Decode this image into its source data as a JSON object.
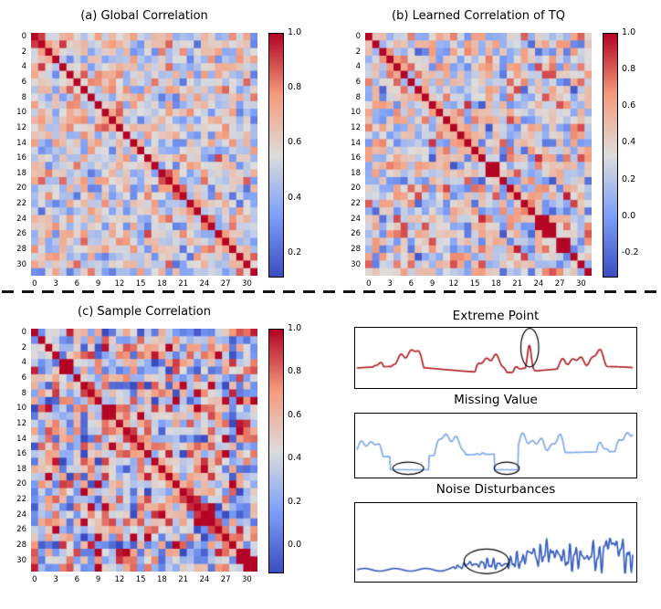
{
  "figure": {
    "background": "#ffffff",
    "separator": "dashed-black-line"
  },
  "colormap": {
    "name": "coolwarm",
    "stops": [
      [
        0.0,
        "#3B4CC0"
      ],
      [
        0.25,
        "#7C9FF9"
      ],
      [
        0.5,
        "#DDDDDD"
      ],
      [
        0.75,
        "#F59C7D"
      ],
      [
        1.0,
        "#B40426"
      ]
    ]
  },
  "chart_data": [
    {
      "id": "global_correlation",
      "type": "heatmap",
      "title": "(a) Global Correlation",
      "size": 32,
      "diagonal_value": 1.0,
      "vmin": 0.12,
      "vmax": 1.0,
      "x_ticks": [
        "0",
        "3",
        "6",
        "9",
        "12",
        "15",
        "18",
        "21",
        "24",
        "27",
        "30"
      ],
      "y_ticks": [
        "0",
        "2",
        "4",
        "6",
        "8",
        "10",
        "12",
        "14",
        "16",
        "18",
        "20",
        "22",
        "24",
        "26",
        "28",
        "30"
      ],
      "colorbar_ticks": [
        "1.0",
        "0.8",
        "0.6",
        "0.4",
        "0.2"
      ],
      "legend_position": "right-colorbar",
      "seed": 11,
      "spread": 0.85
    },
    {
      "id": "learned_correlation_tq",
      "type": "heatmap",
      "title": "(b) Learned Correlation of TQ",
      "size": 32,
      "diagonal_value": 1.0,
      "vmin": -0.32,
      "vmax": 1.0,
      "x_ticks": [
        "0",
        "3",
        "6",
        "9",
        "12",
        "15",
        "18",
        "21",
        "24",
        "27",
        "30"
      ],
      "y_ticks": [
        "0",
        "2",
        "4",
        "6",
        "8",
        "10",
        "12",
        "14",
        "16",
        "18",
        "20",
        "22",
        "24",
        "26",
        "28",
        "30"
      ],
      "colorbar_ticks": [
        "1.0",
        "0.8",
        "0.6",
        "0.4",
        "0.2",
        "0.0",
        "-0.2"
      ],
      "legend_position": "right-colorbar",
      "seed": 23,
      "spread": 1.0
    },
    {
      "id": "sample_correlation",
      "type": "heatmap",
      "title": "(c) Sample Correlation",
      "size": 32,
      "diagonal_value": 1.0,
      "vmin": -0.12,
      "vmax": 1.0,
      "x_ticks": [
        "0",
        "3",
        "6",
        "9",
        "12",
        "15",
        "18",
        "21",
        "24",
        "27",
        "30"
      ],
      "y_ticks": [
        "0",
        "2",
        "4",
        "6",
        "8",
        "10",
        "12",
        "14",
        "16",
        "18",
        "20",
        "22",
        "24",
        "26",
        "28",
        "30"
      ],
      "colorbar_ticks": [
        "1.0",
        "0.8",
        "0.6",
        "0.4",
        "0.2",
        "0.0"
      ],
      "legend_position": "right-colorbar",
      "seed": 37,
      "spread": 1.4
    },
    {
      "id": "extreme_point",
      "type": "line",
      "title": "Extreme Point",
      "color": "#B02125",
      "style": "bumpy_with_spike",
      "seed": 5,
      "spike_x": 0.625,
      "annotations": [
        {
          "shape": "ellipse",
          "x": 0.625,
          "y": 0.34,
          "rx": 0.032,
          "ry": 0.33
        }
      ]
    },
    {
      "id": "missing_value",
      "type": "line",
      "title": "Missing Value",
      "color": "#7FA9E8",
      "style": "bumpy_with_gaps",
      "seed": 9,
      "gaps": [
        [
          0.12,
          0.26
        ],
        [
          0.5,
          0.585
        ]
      ],
      "annotations": [
        {
          "shape": "ellipse",
          "x": 0.19,
          "y": 0.88,
          "rx": 0.055,
          "ry": 0.1
        },
        {
          "shape": "ellipse",
          "x": 0.5425,
          "y": 0.88,
          "rx": 0.045,
          "ry": 0.1
        }
      ]
    },
    {
      "id": "noise_disturbances",
      "type": "line",
      "title": "Noise Disturbances",
      "color": "#3A5FC0",
      "style": "noisy_rise",
      "seed": 13,
      "annotations": [
        {
          "shape": "ellipse",
          "x": 0.47,
          "y": 0.76,
          "rx": 0.08,
          "ry": 0.16
        }
      ]
    }
  ]
}
